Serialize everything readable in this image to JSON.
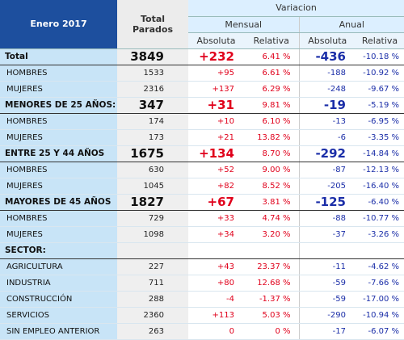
{
  "header": {
    "period": "Enero 2017",
    "total": "Total Parados",
    "variation": "Variacion",
    "monthly": "Mensual",
    "annual": "Anual",
    "columns": [
      "Absoluta",
      "Relativa",
      "Absoluta",
      "Relativa"
    ]
  },
  "table": {
    "rows": [
      [
        "Total",
        "3849",
        "+232",
        "6.41 %",
        "-436",
        "-10.18 %"
      ],
      [
        "HOMBRES",
        "1533",
        "+95",
        "6.61 %",
        "-188",
        "-10.92 %"
      ],
      [
        "MUJERES",
        "2316",
        "+137",
        "6.29 %",
        "-248",
        "-9.67 %"
      ],
      [
        "MENORES DE 25 AÑOS:",
        "347",
        "+31",
        "9.81 %",
        "-19",
        "-5.19 %"
      ],
      [
        "HOMBRES",
        "174",
        "+10",
        "6.10 %",
        "-13",
        "-6.95 %"
      ],
      [
        "MUJERES",
        "173",
        "+21",
        "13.82 %",
        "-6",
        "-3.35 %"
      ],
      [
        "ENTRE 25 Y 44 AÑOS",
        "1675",
        "+134",
        "8.70 %",
        "-292",
        "-14.84 %"
      ],
      [
        "HOMBRES",
        "630",
        "+52",
        "9.00 %",
        "-87",
        "-12.13 %"
      ],
      [
        "MUJERES",
        "1045",
        "+82",
        "8.52 %",
        "-205",
        "-16.40 %"
      ],
      [
        "MAYORES DE 45 AÑOS",
        "1827",
        "+67",
        "3.81 %",
        "-125",
        "-6.40 %"
      ],
      [
        "HOMBRES",
        "729",
        "+33",
        "4.74 %",
        "-88",
        "-10.77 %"
      ],
      [
        "MUJERES",
        "1098",
        "+34",
        "3.20 %",
        "-37",
        "-3.26 %"
      ],
      [
        "SECTOR:"
      ],
      [
        "AGRICULTURA",
        "227",
        "+43",
        "23.37 %",
        "-11",
        "-4.62 %"
      ],
      [
        "INDUSTRIA",
        "711",
        "+80",
        "12.68 %",
        "-59",
        "-7.66 %"
      ],
      [
        "CONSTRUCCIÓN",
        "288",
        "-4",
        "-1.37 %",
        "-59",
        "-17.00 %"
      ],
      [
        "SERVICIOS",
        "2360",
        "+113",
        "5.03 %",
        "-290",
        "-10.94 %"
      ],
      [
        "SIN EMPLEO ANTERIOR",
        "263",
        "0",
        "0 %",
        "-17",
        "-6.07 %"
      ]
    ]
  }
}
